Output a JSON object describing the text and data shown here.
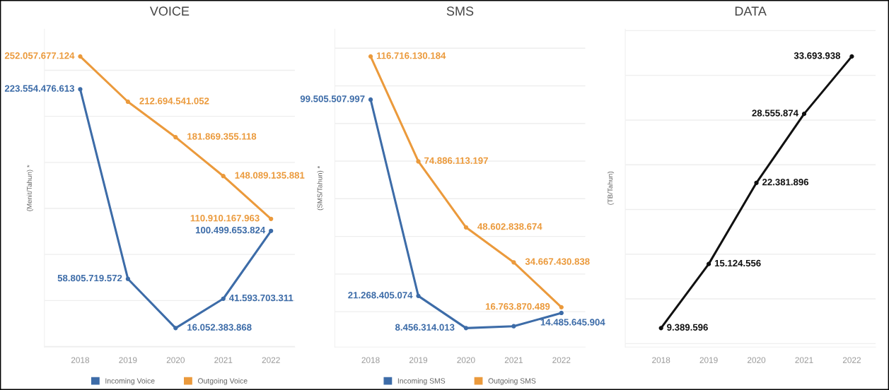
{
  "chart_data": [
    {
      "type": "line",
      "title": "VOICE",
      "ylabel": "(Menit/Tahun) *",
      "categories": [
        "2018",
        "2019",
        "2020",
        "2021",
        "2022"
      ],
      "grid": "y",
      "tick_labels": "x",
      "marker": "circle",
      "legend": "bottom",
      "series": [
        {
          "name": "Incoming Voice",
          "color": "#3d6ca8",
          "values": [
            223554476613,
            58805719572,
            16052383868,
            41593703311,
            100499653824
          ],
          "value_labels": [
            "223.554.476.613",
            "58.805.719.572",
            "16.052.383.868",
            "41.593.703.311",
            "100.499.653.824"
          ]
        },
        {
          "name": "Outgoing Voice",
          "color": "#eb9a3c",
          "values": [
            252057677124,
            212694541052,
            181869355118,
            148089135881,
            110910167963
          ],
          "value_labels": [
            "252.057.677.124",
            "212.694.541.052",
            "181.869.355.118",
            "148.089.135.881",
            "110.910.167.963"
          ]
        }
      ]
    },
    {
      "type": "line",
      "title": "SMS",
      "ylabel": "(SMS/Tahun) *",
      "categories": [
        "2018",
        "2019",
        "2020",
        "2021",
        "2022"
      ],
      "grid": "y",
      "tick_labels": "x",
      "marker": "circle",
      "legend": "bottom",
      "series": [
        {
          "name": "Incoming SMS",
          "color": "#3d6ca8",
          "values": [
            99505507997,
            21268405074,
            8456314013,
            9200000000,
            14485645904
          ],
          "value_labels": [
            "99.505.507.997",
            "21.268.405.074",
            "8.456.314.013",
            null,
            "14.485.645.904"
          ]
        },
        {
          "name": "Outgoing SMS",
          "color": "#eb9a3c",
          "values": [
            116716130184,
            74886113197,
            48602838674,
            34667430838,
            16763870489
          ],
          "value_labels": [
            "116.716.130.184",
            "74.886.113.197",
            "48.602.838.674",
            "34.667.430.838",
            "16.763.870.489"
          ]
        }
      ]
    },
    {
      "type": "line",
      "title": "DATA",
      "ylabel": "(TB/Tahun)",
      "categories": [
        "2018",
        "2019",
        "2020",
        "2021",
        "2022"
      ],
      "grid": "y",
      "tick_labels": "x",
      "marker": "circle",
      "series": [
        {
          "color": "#111111",
          "values": [
            9389596,
            15124556,
            22381896,
            28555874,
            33693938
          ],
          "value_labels": [
            "9.389.596",
            "15.124.556",
            "22.381.896",
            "28.555.874",
            "33.693.938"
          ]
        }
      ]
    }
  ]
}
